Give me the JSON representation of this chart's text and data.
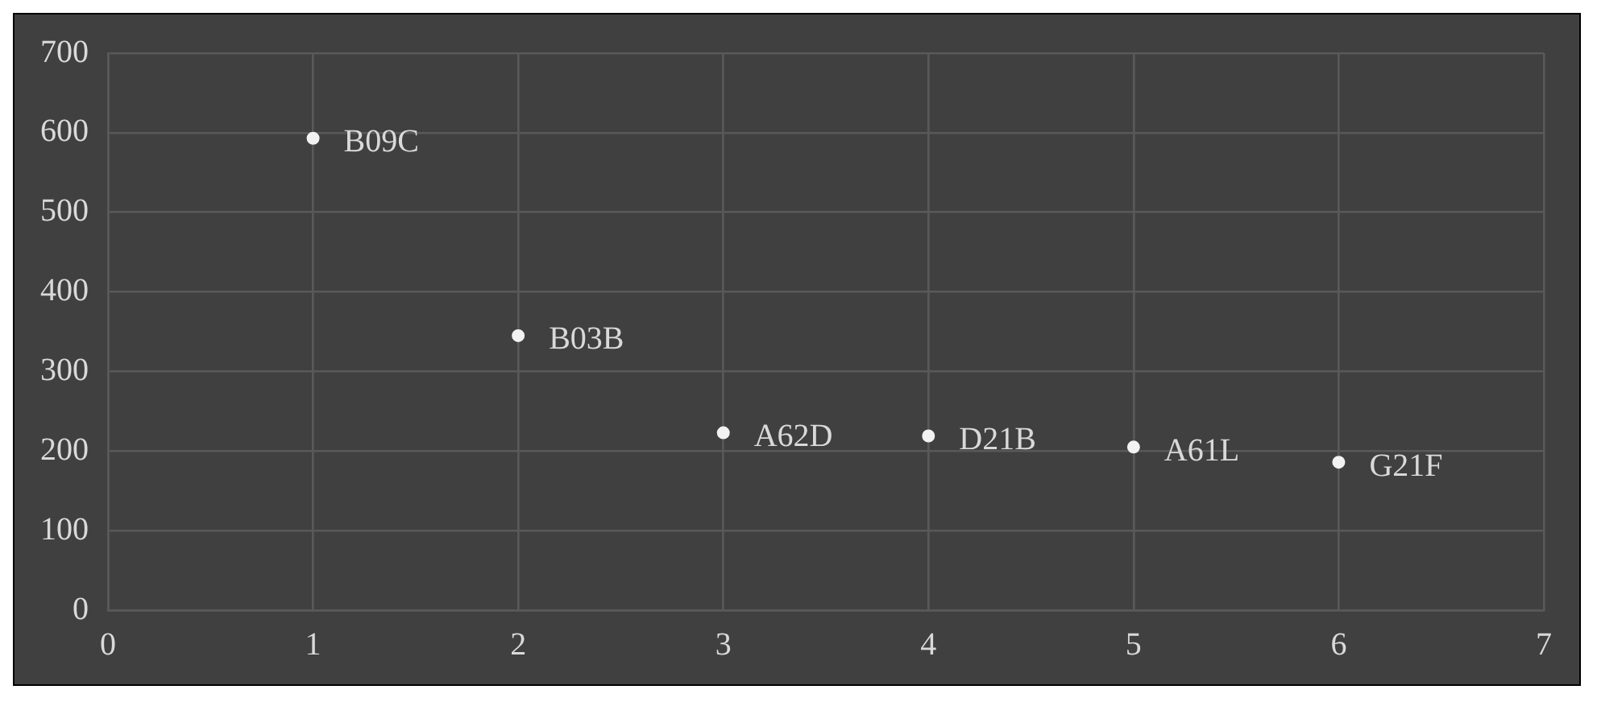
{
  "chart_data": {
    "type": "scatter",
    "x": [
      1,
      2,
      3,
      4,
      5,
      6
    ],
    "series": [
      {
        "color": "#f2f2f2",
        "values": [
          593,
          345,
          223,
          219,
          205,
          186
        ]
      }
    ],
    "xlim": [
      0,
      7
    ],
    "xticks": [
      0,
      1,
      2,
      3,
      4,
      5,
      6,
      7
    ],
    "ylim": [
      0,
      700
    ],
    "yticks": [
      0,
      100,
      200,
      300,
      400,
      500,
      600,
      700
    ],
    "grid": true,
    "marker": "circle",
    "annotations": [
      {
        "text": "B09C",
        "x": 1,
        "y": 593
      },
      {
        "text": "B03B",
        "x": 2,
        "y": 345
      },
      {
        "text": "A62D",
        "x": 3,
        "y": 223
      },
      {
        "text": "D21B",
        "x": 4,
        "y": 219
      },
      {
        "text": "A61L",
        "x": 5,
        "y": 205
      },
      {
        "text": "G21F",
        "x": 6,
        "y": 186
      }
    ]
  }
}
